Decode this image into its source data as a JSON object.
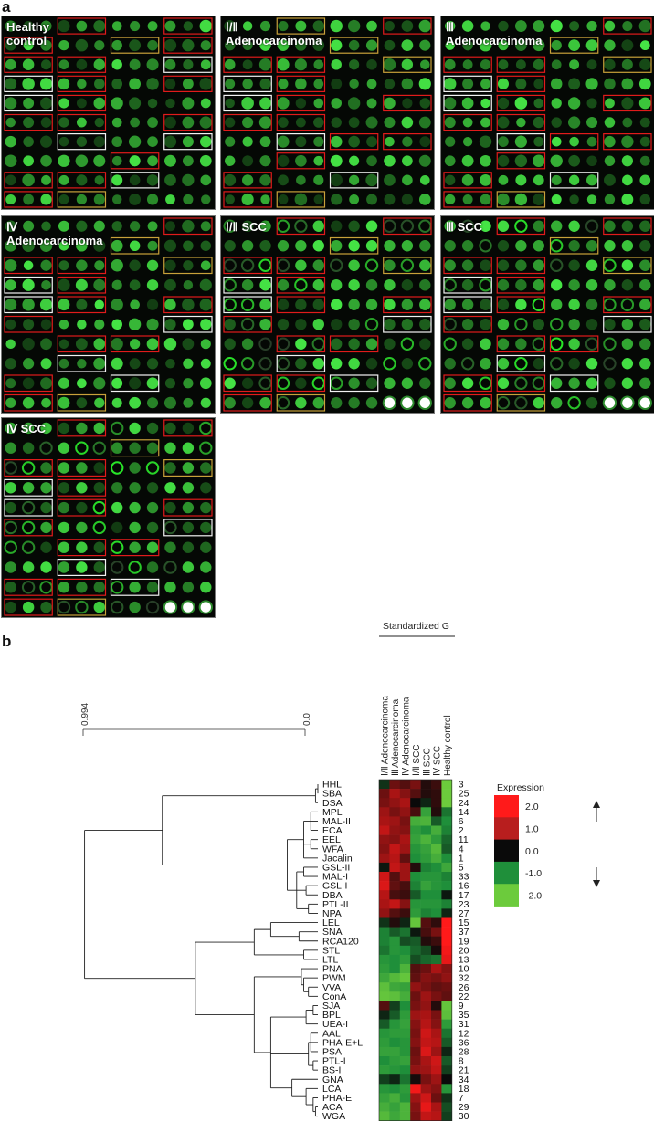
{
  "panel_a": {
    "letter": "a",
    "arrays": [
      {
        "label": "Healthy\ncontrol"
      },
      {
        "label": "Ⅰ/Ⅱ\nAdenocarcinoma"
      },
      {
        "label": "Ⅲ\nAdenocarcinoma"
      },
      {
        "label": "Ⅳ\nAdenocarcinoma"
      },
      {
        "label": "Ⅰ/Ⅱ SCC"
      },
      {
        "label": "Ⅲ SCC"
      },
      {
        "label": "Ⅳ SCC"
      }
    ]
  },
  "panel_b": {
    "letter": "b",
    "header": "Standardized G",
    "columns": [
      "Ⅰ/Ⅱ Adenocarcinoma",
      "Ⅲ Adenocarcinoma",
      "Ⅳ Adenocarcinoma",
      "Ⅰ/Ⅱ SCC",
      "Ⅲ SCC",
      "Ⅳ SCC",
      "Healthy control"
    ],
    "scale": {
      "left": "0.994",
      "right": "0.0"
    },
    "legend": {
      "title": "Expression",
      "ticks": [
        "2.0",
        "1.0",
        "0.0",
        "-1.0",
        "-2.0"
      ],
      "colors": [
        "#ff1a1a",
        "#b81e1e",
        "#0a0a0a",
        "#1f8f3a",
        "#6ccb3c"
      ]
    }
  },
  "chart_data": {
    "type": "heatmap",
    "columns": [
      "Ⅰ/Ⅱ Adenocarcinoma",
      "Ⅲ Adenocarcinoma",
      "Ⅳ Adenocarcinoma",
      "Ⅰ/Ⅱ SCC",
      "Ⅲ SCC",
      "Ⅳ SCC",
      "Healthy control"
    ],
    "rows": [
      {
        "lectin": "HHL",
        "id": "3",
        "values": [
          -0.3,
          0.8,
          0.6,
          0.9,
          0.2,
          0.4,
          -2.0
        ]
      },
      {
        "lectin": "SBA",
        "id": "25",
        "values": [
          0.8,
          1.3,
          1.0,
          0.6,
          0.2,
          0.3,
          -2.0
        ]
      },
      {
        "lectin": "DSA",
        "id": "24",
        "values": [
          0.9,
          1.1,
          1.3,
          0.0,
          -0.2,
          0.3,
          -2.0
        ]
      },
      {
        "lectin": "MPL",
        "id": "14",
        "values": [
          1.2,
          0.9,
          1.1,
          0.5,
          -1.3,
          0.2,
          -0.8
        ]
      },
      {
        "lectin": "MAL-II",
        "id": "6",
        "values": [
          1.3,
          1.2,
          0.9,
          -1.5,
          -1.6,
          -0.6,
          -1.0
        ]
      },
      {
        "lectin": "ECA",
        "id": "2",
        "values": [
          1.5,
          1.1,
          1.0,
          -1.2,
          -1.0,
          -1.5,
          -0.9
        ]
      },
      {
        "lectin": "EEL",
        "id": "11",
        "values": [
          1.1,
          1.0,
          1.3,
          -1.3,
          -1.6,
          -1.2,
          -0.7
        ]
      },
      {
        "lectin": "WFA",
        "id": "4",
        "values": [
          1.0,
          1.5,
          1.2,
          -1.1,
          -1.3,
          -1.7,
          -0.6
        ]
      },
      {
        "lectin": "Jacalin",
        "id": "1",
        "values": [
          1.2,
          1.4,
          0.7,
          -1.0,
          -1.2,
          -1.5,
          -1.0
        ]
      },
      {
        "lectin": "GSL-II",
        "id": "5",
        "values": [
          -0.1,
          1.5,
          1.2,
          0.2,
          -0.9,
          -1.0,
          -1.4
        ]
      },
      {
        "lectin": "MAL-I",
        "id": "33",
        "values": [
          1.6,
          0.6,
          1.2,
          -1.0,
          -1.1,
          -1.1,
          -0.9
        ]
      },
      {
        "lectin": "GSL-I",
        "id": "16",
        "values": [
          1.7,
          0.7,
          0.5,
          -0.9,
          -1.3,
          -1.1,
          -1.0
        ]
      },
      {
        "lectin": "DBA",
        "id": "17",
        "values": [
          1.4,
          0.5,
          0.4,
          -0.6,
          -1.0,
          -1.0,
          -0.1
        ]
      },
      {
        "lectin": "PTL-II",
        "id": "23",
        "values": [
          1.3,
          1.5,
          1.0,
          -1.1,
          -1.1,
          -1.1,
          -0.9
        ]
      },
      {
        "lectin": "NPA",
        "id": "27",
        "values": [
          1.1,
          0.6,
          0.4,
          -1.2,
          -0.9,
          -1.0,
          -0.2
        ]
      },
      {
        "lectin": "LEL",
        "id": "15",
        "values": [
          -0.3,
          0.2,
          -0.2,
          -1.9,
          0.6,
          0.3,
          2.0
        ]
      },
      {
        "lectin": "SNA",
        "id": "37",
        "values": [
          -0.9,
          -0.6,
          -0.8,
          -0.1,
          0.5,
          0.9,
          2.0
        ]
      },
      {
        "lectin": "RCA120",
        "id": "19",
        "values": [
          -0.9,
          -1.1,
          -0.5,
          -0.6,
          0.2,
          0.4,
          2.0
        ]
      },
      {
        "lectin": "STL",
        "id": "20",
        "values": [
          -0.8,
          -1.1,
          -1.0,
          -0.7,
          -0.5,
          0.1,
          1.9
        ]
      },
      {
        "lectin": "LTL",
        "id": "13",
        "values": [
          -1.1,
          -1.0,
          -1.2,
          -0.5,
          -0.7,
          -0.8,
          1.8
        ]
      },
      {
        "lectin": "PNA",
        "id": "10",
        "values": [
          -1.2,
          -1.0,
          -1.6,
          0.6,
          0.8,
          1.3,
          1.0
        ]
      },
      {
        "lectin": "PWM",
        "id": "32",
        "values": [
          -1.4,
          -1.7,
          -1.9,
          0.7,
          1.0,
          0.9,
          1.1
        ]
      },
      {
        "lectin": "VVA",
        "id": "26",
        "values": [
          -1.8,
          -1.4,
          -1.3,
          1.1,
          0.9,
          0.7,
          0.8
        ]
      },
      {
        "lectin": "ConA",
        "id": "22",
        "values": [
          -1.9,
          -1.8,
          -1.5,
          0.8,
          1.2,
          0.9,
          0.7
        ]
      },
      {
        "lectin": "SJA",
        "id": "9",
        "values": [
          0.6,
          -0.4,
          -1.0,
          0.9,
          1.1,
          0.2,
          -1.9
        ]
      },
      {
        "lectin": "BPL",
        "id": "35",
        "values": [
          -0.2,
          -0.6,
          -1.2,
          1.2,
          1.3,
          0.9,
          -1.8
        ]
      },
      {
        "lectin": "UEA-I",
        "id": "31",
        "values": [
          -0.6,
          -1.1,
          -1.3,
          1.0,
          1.4,
          1.0,
          -1.2
        ]
      },
      {
        "lectin": "AAL",
        "id": "12",
        "values": [
          -1.1,
          -1.2,
          -1.2,
          0.9,
          1.6,
          1.3,
          -0.8
        ]
      },
      {
        "lectin": "PHA-E+L",
        "id": "36",
        "values": [
          -1.2,
          -1.0,
          -1.1,
          1.0,
          1.5,
          1.4,
          -0.6
        ]
      },
      {
        "lectin": "PSA",
        "id": "28",
        "values": [
          -1.3,
          -1.3,
          -1.1,
          0.8,
          1.7,
          1.2,
          -0.2
        ]
      },
      {
        "lectin": "PTL-I",
        "id": "8",
        "values": [
          -1.0,
          -1.2,
          -1.3,
          0.9,
          1.3,
          1.6,
          -0.6
        ]
      },
      {
        "lectin": "BS-I",
        "id": "21",
        "values": [
          -1.2,
          -1.1,
          -1.0,
          1.1,
          1.2,
          1.5,
          -0.4
        ]
      },
      {
        "lectin": "GNA",
        "id": "34",
        "values": [
          -0.4,
          -0.2,
          -0.8,
          0.1,
          0.9,
          1.2,
          0.0
        ]
      },
      {
        "lectin": "LCA",
        "id": "18",
        "values": [
          -1.1,
          -1.0,
          -1.2,
          1.9,
          1.2,
          1.0,
          -1.1
        ]
      },
      {
        "lectin": "PHA-E",
        "id": "7",
        "values": [
          -1.3,
          -1.5,
          -1.1,
          1.2,
          1.6,
          0.8,
          -0.3
        ]
      },
      {
        "lectin": "ACA",
        "id": "29",
        "values": [
          -1.5,
          -1.3,
          -1.6,
          1.0,
          1.8,
          1.3,
          -0.5
        ]
      },
      {
        "lectin": "WGA",
        "id": "30",
        "values": [
          -1.7,
          -1.4,
          -1.6,
          0.9,
          1.5,
          1.4,
          -0.4
        ]
      }
    ],
    "legend_title": "Expression",
    "legend_ticks": [
      2.0,
      1.0,
      0.0,
      -1.0,
      -2.0
    ],
    "dendrogram_scale": [
      "0.994",
      "0.0"
    ]
  }
}
